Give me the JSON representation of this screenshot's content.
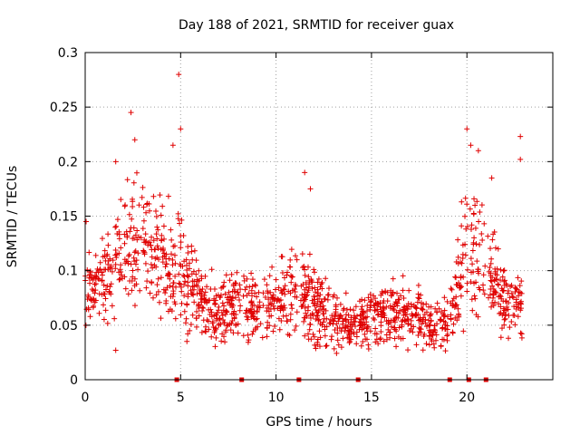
{
  "chart_data": {
    "type": "scatter",
    "title": "Day 188 of 2021, SRMTID for receiver guax",
    "xlabel": "GPS time / hours",
    "ylabel": "SRMTID / TECUs",
    "xlim": [
      0,
      24.5
    ],
    "ylim": [
      0,
      0.3
    ],
    "x_ticks": [
      0,
      5,
      10,
      15,
      20
    ],
    "x_tick_labels": [
      "0",
      "5",
      "10",
      "15",
      "20"
    ],
    "y_ticks": [
      0,
      0.05,
      0.1,
      0.15,
      0.2,
      0.25,
      0.3
    ],
    "y_tick_labels": [
      "0",
      "0.05",
      "0.1",
      "0.15",
      "0.2",
      "0.25",
      "0.3"
    ],
    "grid": true,
    "marker": "+",
    "color": "#e00000",
    "series": [
      {
        "name": "SRMTID",
        "envelope_note": "hourly approximate median and spread of the dense point cloud",
        "hourly_profile": [
          {
            "hour": 0,
            "median": 0.085,
            "spread": 0.03
          },
          {
            "hour": 1,
            "median": 0.09,
            "spread": 0.035
          },
          {
            "hour": 2,
            "median": 0.12,
            "spread": 0.05
          },
          {
            "hour": 3,
            "median": 0.13,
            "spread": 0.06
          },
          {
            "hour": 4,
            "median": 0.11,
            "spread": 0.05
          },
          {
            "hour": 5,
            "median": 0.1,
            "spread": 0.05
          },
          {
            "hour": 6,
            "median": 0.075,
            "spread": 0.035
          },
          {
            "hour": 7,
            "median": 0.06,
            "spread": 0.03
          },
          {
            "hour": 8,
            "median": 0.07,
            "spread": 0.035
          },
          {
            "hour": 9,
            "median": 0.065,
            "spread": 0.035
          },
          {
            "hour": 10,
            "median": 0.07,
            "spread": 0.035
          },
          {
            "hour": 11,
            "median": 0.075,
            "spread": 0.04
          },
          {
            "hour": 12,
            "median": 0.07,
            "spread": 0.04
          },
          {
            "hour": 13,
            "median": 0.055,
            "spread": 0.025
          },
          {
            "hour": 14,
            "median": 0.05,
            "spread": 0.02
          },
          {
            "hour": 15,
            "median": 0.06,
            "spread": 0.03
          },
          {
            "hour": 16,
            "median": 0.06,
            "spread": 0.03
          },
          {
            "hour": 17,
            "median": 0.06,
            "spread": 0.03
          },
          {
            "hour": 18,
            "median": 0.05,
            "spread": 0.025
          },
          {
            "hour": 19,
            "median": 0.05,
            "spread": 0.025
          },
          {
            "hour": 20,
            "median": 0.12,
            "spread": 0.06
          },
          {
            "hour": 21,
            "median": 0.11,
            "spread": 0.05
          },
          {
            "hour": 22,
            "median": 0.07,
            "spread": 0.03
          }
        ],
        "peaks": [
          {
            "x": 0.05,
            "y": 0.145
          },
          {
            "x": 1.6,
            "y": 0.2
          },
          {
            "x": 2.4,
            "y": 0.245
          },
          {
            "x": 2.6,
            "y": 0.22
          },
          {
            "x": 4.6,
            "y": 0.215
          },
          {
            "x": 4.9,
            "y": 0.28
          },
          {
            "x": 5.0,
            "y": 0.23
          },
          {
            "x": 11.5,
            "y": 0.19
          },
          {
            "x": 11.8,
            "y": 0.175
          },
          {
            "x": 20.0,
            "y": 0.23
          },
          {
            "x": 20.2,
            "y": 0.215
          },
          {
            "x": 20.6,
            "y": 0.21
          },
          {
            "x": 21.3,
            "y": 0.185
          },
          {
            "x": 22.8,
            "y": 0.223
          },
          {
            "x": 22.8,
            "y": 0.202
          },
          {
            "x": 1.6,
            "y": 0.027
          }
        ]
      }
    ],
    "data_gap_markers_x": [
      4.8,
      8.2,
      11.2,
      14.3,
      19.1,
      20.1,
      21.0
    ]
  }
}
